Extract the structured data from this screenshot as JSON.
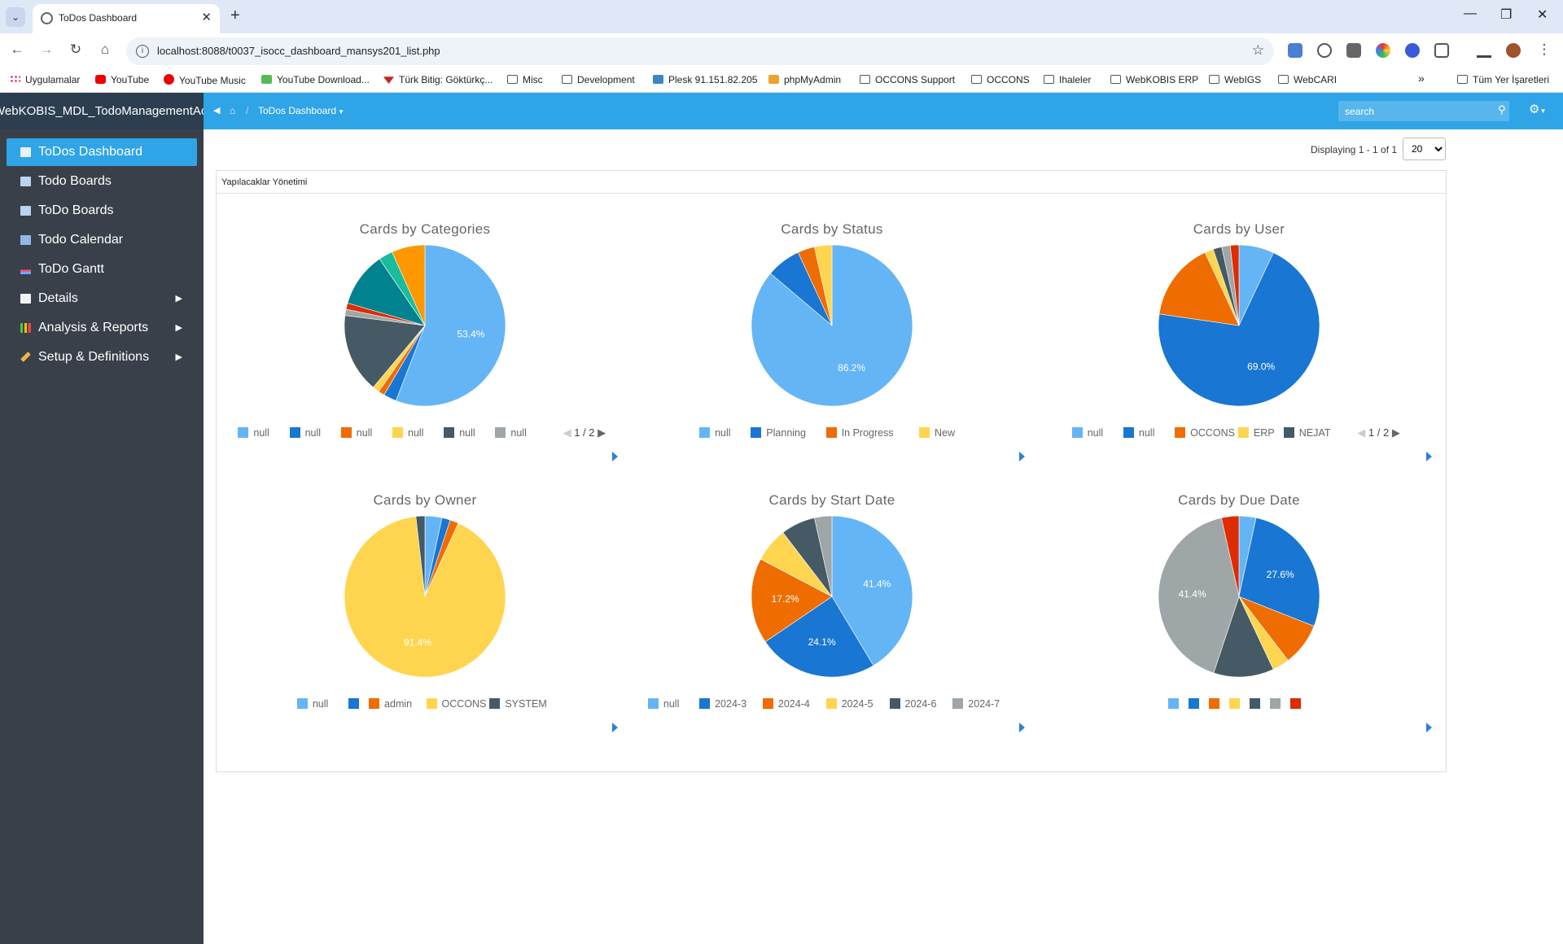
{
  "browser": {
    "tab_title": "ToDos Dashboard",
    "url": "localhost:8088/t0037_isocc_dashboard_mansys201_list.php",
    "bookmarks": [
      {
        "label": "Uygulamalar",
        "icon": "apps-grid-icon"
      },
      {
        "label": "YouTube",
        "icon": "youtube-icon"
      },
      {
        "label": "YouTube Music",
        "icon": "youtube-music-icon"
      },
      {
        "label": "YouTube Download...",
        "icon": "download-icon"
      },
      {
        "label": "Türk Bitig: Göktürkç...",
        "icon": "turk-bitig-icon"
      },
      {
        "label": "Misc",
        "icon": "folder-icon"
      },
      {
        "label": "Development",
        "icon": "folder-icon"
      },
      {
        "label": "Plesk 91.151.82.205",
        "icon": "plesk-icon"
      },
      {
        "label": "phpMyAdmin",
        "icon": "phpmyadmin-icon"
      },
      {
        "label": "OCCONS Support",
        "icon": "folder-icon"
      },
      {
        "label": "OCCONS",
        "icon": "folder-icon"
      },
      {
        "label": "Ihaleler",
        "icon": "folder-icon"
      },
      {
        "label": "WebKOBIS ERP",
        "icon": "folder-icon"
      },
      {
        "label": "WebIGS",
        "icon": "folder-icon"
      },
      {
        "label": "WebCARI",
        "icon": "folder-icon"
      }
    ],
    "more": "»",
    "all_bookmarks": "Tüm Yer İşaretleri"
  },
  "app": {
    "brand": "WebKOBIS_MDL_TodoManagementAc",
    "breadcrumb_sep": "/",
    "breadcrumb_current": "ToDos Dashboard",
    "search_placeholder": "search"
  },
  "sidebar": {
    "items": [
      {
        "label": "ToDos Dashboard",
        "icon": "table-icon",
        "active": true
      },
      {
        "label": "Todo Boards",
        "icon": "table-icon"
      },
      {
        "label": "ToDo Boards",
        "icon": "table-icon"
      },
      {
        "label": "Todo Calendar",
        "icon": "calendar-icon"
      },
      {
        "label": "ToDo Gantt",
        "icon": "gantt-icon"
      },
      {
        "label": "Details",
        "icon": "list-icon",
        "submenu": true
      },
      {
        "label": "Analysis & Reports",
        "icon": "bar-chart-icon",
        "submenu": true
      },
      {
        "label": "Setup & Definitions",
        "icon": "wrench-icon",
        "submenu": true
      }
    ]
  },
  "pager": {
    "text": "Displaying 1 - 1 of 1",
    "page_size": "20"
  },
  "panel": {
    "title": "Yapılacaklar Yönetimi"
  },
  "chart_data": [
    {
      "type": "pie",
      "title": "Cards by Categories",
      "start_angle": 0,
      "slices": [
        {
          "name": "null",
          "value": 53.4,
          "color": "#64b5f6",
          "label": "53.4%"
        },
        {
          "name": "null",
          "value": 2.5,
          "color": "#1976d2"
        },
        {
          "name": "null",
          "value": 1.2,
          "color": "#ef6c00"
        },
        {
          "name": "null",
          "value": 1.3,
          "color": "#ffd54f"
        },
        {
          "name": "null",
          "value": 15.2,
          "color": "#455a64"
        },
        {
          "name": "null",
          "value": 1.2,
          "color": "#9ea6a8"
        },
        {
          "name": null,
          "value": 1.2,
          "color": "#dd2c00"
        },
        {
          "name": null,
          "value": 10.5,
          "color": "#00838f"
        },
        {
          "name": null,
          "value": 2.7,
          "color": "#1abc9c"
        },
        {
          "name": null,
          "value": 6.4,
          "color": "#ff9800"
        }
      ],
      "legend_page": "1 / 2"
    },
    {
      "type": "pie",
      "title": "Cards by Status",
      "start_angle": 0,
      "slices": [
        {
          "name": "null",
          "value": 86.2,
          "color": "#64b5f6",
          "label": "86.2%"
        },
        {
          "name": "Planning",
          "value": 6.9,
          "color": "#1976d2"
        },
        {
          "name": "In Progress",
          "value": 3.4,
          "color": "#ef6c00"
        },
        {
          "name": "New",
          "value": 3.5,
          "color": "#ffd54f"
        }
      ]
    },
    {
      "type": "pie",
      "title": "Cards by User",
      "start_angle": 0,
      "slices": [
        {
          "name": "null",
          "value": 6.9,
          "color": "#64b5f6"
        },
        {
          "name": "null",
          "value": 69.0,
          "color": "#1976d2",
          "label": "69.0%"
        },
        {
          "name": "OCCONS",
          "value": 15.5,
          "color": "#ef6c00"
        },
        {
          "name": "ERP",
          "value": 1.7,
          "color": "#ffd54f"
        },
        {
          "name": "NEJAT",
          "value": 1.7,
          "color": "#455a64"
        },
        {
          "name": null,
          "value": 1.7,
          "color": "#9ea6a8"
        },
        {
          "name": null,
          "value": 1.7,
          "color": "#dd2c00"
        }
      ],
      "legend_page": "1 / 2"
    },
    {
      "type": "pie",
      "title": "Cards by Owner",
      "start_angle": 0,
      "slices": [
        {
          "name": "null",
          "value": 3.4,
          "color": "#64b5f6"
        },
        {
          "name": "",
          "value": 1.7,
          "color": "#1976d2"
        },
        {
          "name": "admin",
          "value": 1.7,
          "color": "#ef6c00"
        },
        {
          "name": "OCCONS",
          "value": 91.4,
          "color": "#ffd54f",
          "label": "91.4%"
        },
        {
          "name": "SYSTEM",
          "value": 1.8,
          "color": "#455a64"
        }
      ]
    },
    {
      "type": "pie",
      "title": "Cards by Start Date",
      "start_angle": 0,
      "slices": [
        {
          "name": "null",
          "value": 41.4,
          "color": "#64b5f6",
          "label": "41.4%"
        },
        {
          "name": "2024-3",
          "value": 24.1,
          "color": "#1976d2",
          "label": "24.1%"
        },
        {
          "name": "2024-4",
          "value": 17.2,
          "color": "#ef6c00",
          "label": "17.2%"
        },
        {
          "name": "2024-5",
          "value": 6.9,
          "color": "#ffd54f"
        },
        {
          "name": "2024-6",
          "value": 6.9,
          "color": "#455a64"
        },
        {
          "name": "2024-7",
          "value": 3.5,
          "color": "#9ea6a8"
        }
      ]
    },
    {
      "type": "pie",
      "title": "Cards by Due Date",
      "start_angle": 0,
      "slices": [
        {
          "name": "",
          "value": 3.4,
          "color": "#64b5f6"
        },
        {
          "name": "",
          "value": 27.6,
          "color": "#1976d2",
          "label": "27.6%"
        },
        {
          "name": "",
          "value": 8.6,
          "color": "#ef6c00"
        },
        {
          "name": "",
          "value": 3.4,
          "color": "#ffd54f"
        },
        {
          "name": "",
          "value": 12.1,
          "color": "#455a64"
        },
        {
          "name": "",
          "value": 41.4,
          "color": "#9ea6a8",
          "label": "41.4%"
        },
        {
          "name": "",
          "value": 3.5,
          "color": "#dd2c00"
        }
      ]
    }
  ]
}
